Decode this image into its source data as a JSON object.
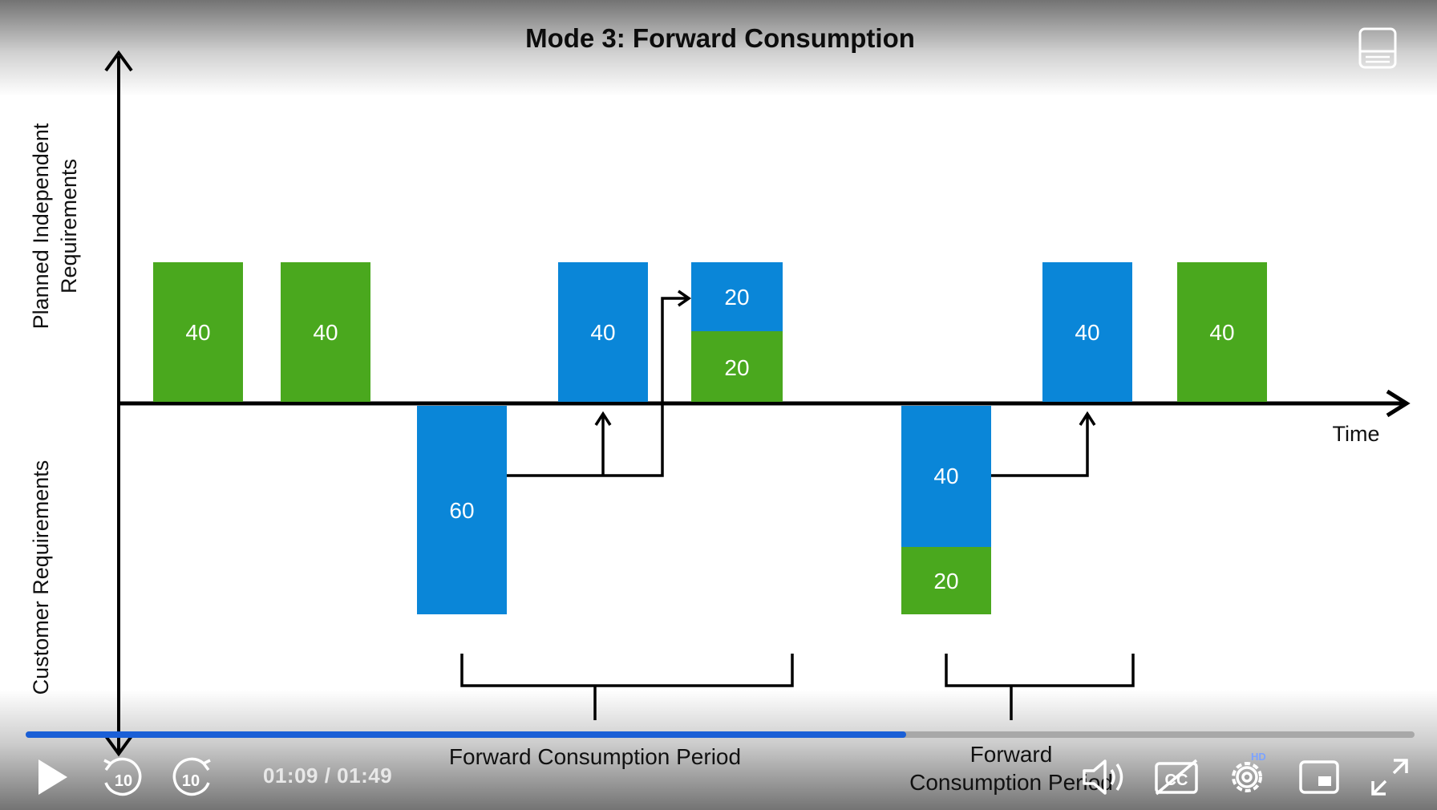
{
  "slide": {
    "title": "Mode 3: Forward Consumption",
    "y_axis_upper_label_line1": "Planned Independent",
    "y_axis_upper_label_line2": "Requirements",
    "y_axis_lower_label": "Customer Requirements",
    "x_axis_label": "Time",
    "bars_above": [
      "40",
      "40",
      "40",
      "20",
      "20",
      "40",
      "40"
    ],
    "bars_below": [
      "60",
      "40",
      "20"
    ],
    "bracket_label_1": "Forward Consumption Period",
    "bracket_label_2_line1": "Forward",
    "bracket_label_2_line2": "Consumption Period"
  },
  "colors": {
    "green": "#4aa81e",
    "blue": "#0a86d8",
    "progress": "#1a5fd6"
  },
  "player": {
    "time_display": "01:09 / 01:49",
    "progress_fraction": 0.634,
    "rewind_seconds": "10",
    "forward_seconds": "10",
    "hd_badge": "HD",
    "icons": [
      "transcript-icon",
      "play-icon",
      "rewind-10-icon",
      "forward-10-icon",
      "volume-icon",
      "captions-off-icon",
      "settings-icon",
      "picture-in-picture-icon",
      "fullscreen-icon"
    ]
  }
}
